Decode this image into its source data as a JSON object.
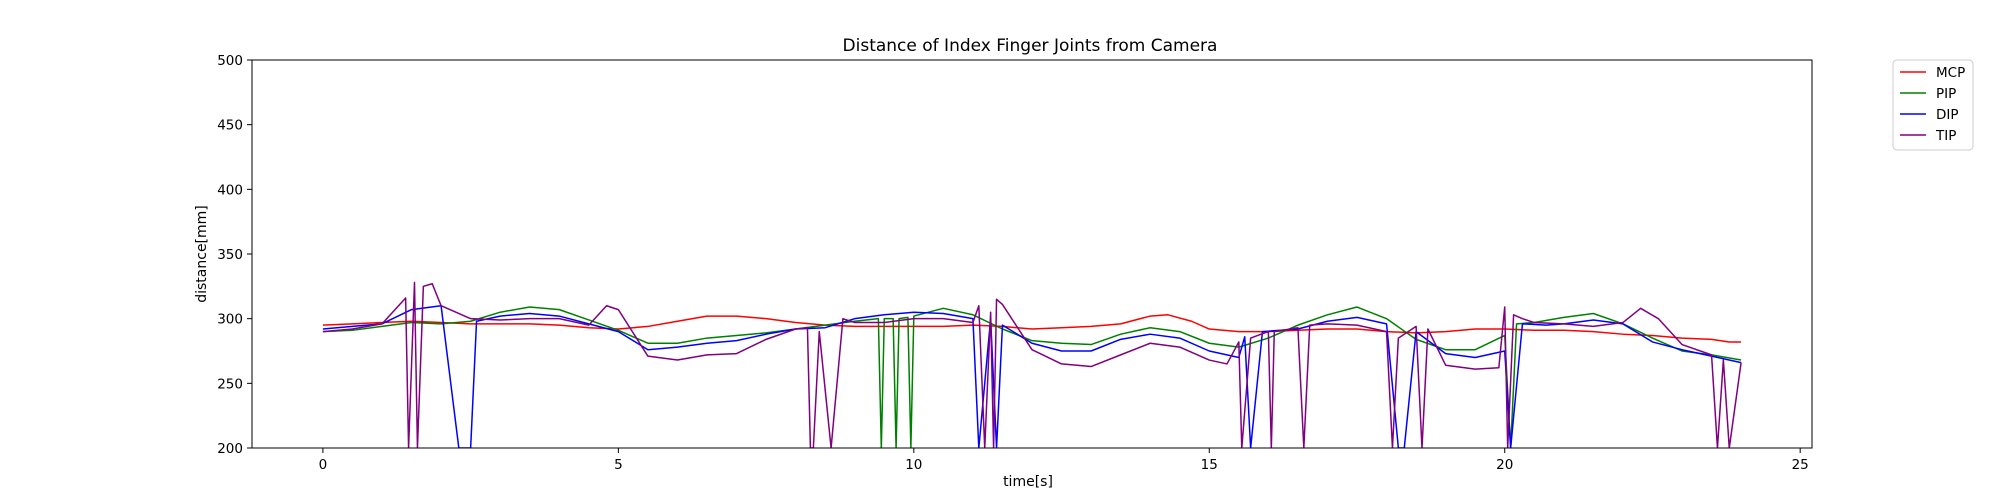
{
  "chart_data": {
    "type": "line",
    "title": "Distance of Index Finger Joints from Camera",
    "xlabel": "time[s]",
    "ylabel": "distance[mm]",
    "xlim": [
      -1.2,
      25.2
    ],
    "ylim": [
      200,
      500
    ],
    "xticks": [
      0,
      5,
      10,
      15,
      20,
      25
    ],
    "yticks": [
      200,
      250,
      300,
      350,
      400,
      450,
      500
    ],
    "grid": false,
    "legend_position": "outside-top-right",
    "series": [
      {
        "name": "MCP",
        "color": "#ff0000",
        "points": [
          [
            0,
            295
          ],
          [
            0.5,
            296
          ],
          [
            1,
            297
          ],
          [
            1.5,
            298
          ],
          [
            2,
            297
          ],
          [
            2.5,
            296
          ],
          [
            3,
            296
          ],
          [
            3.5,
            296
          ],
          [
            4,
            295
          ],
          [
            4.5,
            293
          ],
          [
            5,
            292
          ],
          [
            5.5,
            294
          ],
          [
            6,
            298
          ],
          [
            6.5,
            302
          ],
          [
            7,
            302
          ],
          [
            7.5,
            300
          ],
          [
            8,
            297
          ],
          [
            8.5,
            295
          ],
          [
            9,
            294
          ],
          [
            9.5,
            294
          ],
          [
            10,
            294
          ],
          [
            10.5,
            294
          ],
          [
            11,
            295
          ],
          [
            11.5,
            294
          ],
          [
            12,
            292
          ],
          [
            12.5,
            293
          ],
          [
            13,
            294
          ],
          [
            13.5,
            296
          ],
          [
            14,
            302
          ],
          [
            14.3,
            303
          ],
          [
            14.7,
            298
          ],
          [
            15,
            292
          ],
          [
            15.5,
            290
          ],
          [
            16,
            290
          ],
          [
            16.5,
            291
          ],
          [
            17,
            292
          ],
          [
            17.5,
            292
          ],
          [
            18,
            290
          ],
          [
            18.5,
            289
          ],
          [
            19,
            290
          ],
          [
            19.5,
            292
          ],
          [
            20,
            292
          ],
          [
            20.5,
            291
          ],
          [
            21,
            291
          ],
          [
            21.5,
            290
          ],
          [
            22,
            288
          ],
          [
            22.5,
            287
          ],
          [
            23,
            285
          ],
          [
            23.5,
            284
          ],
          [
            23.8,
            282
          ],
          [
            24,
            282
          ]
        ]
      },
      {
        "name": "PIP",
        "color": "#008000",
        "points": [
          [
            0,
            290
          ],
          [
            0.5,
            291
          ],
          [
            1,
            294
          ],
          [
            1.5,
            297
          ],
          [
            2,
            296
          ],
          [
            2.5,
            298
          ],
          [
            3,
            305
          ],
          [
            3.5,
            309
          ],
          [
            4,
            307
          ],
          [
            4.5,
            299
          ],
          [
            5,
            291
          ],
          [
            5.5,
            281
          ],
          [
            6,
            281
          ],
          [
            6.5,
            285
          ],
          [
            7,
            287
          ],
          [
            7.5,
            289
          ],
          [
            8,
            292
          ],
          [
            8.5,
            295
          ],
          [
            9,
            298
          ],
          [
            9.4,
            300
          ],
          [
            9.45,
            200
          ],
          [
            9.5,
            300
          ],
          [
            9.65,
            300
          ],
          [
            9.7,
            200
          ],
          [
            9.75,
            300
          ],
          [
            9.9,
            301
          ],
          [
            9.95,
            200
          ],
          [
            10,
            302
          ],
          [
            10.5,
            308
          ],
          [
            11,
            303
          ],
          [
            11.5,
            292
          ],
          [
            12,
            283
          ],
          [
            12.5,
            281
          ],
          [
            13,
            280
          ],
          [
            13.5,
            288
          ],
          [
            14,
            293
          ],
          [
            14.5,
            290
          ],
          [
            15,
            281
          ],
          [
            15.5,
            278
          ],
          [
            16,
            285
          ],
          [
            16.5,
            295
          ],
          [
            17,
            303
          ],
          [
            17.5,
            309
          ],
          [
            18,
            300
          ],
          [
            18.5,
            284
          ],
          [
            19,
            276
          ],
          [
            19.5,
            276
          ],
          [
            20,
            287
          ],
          [
            20.1,
            200
          ],
          [
            20.2,
            296
          ],
          [
            20.5,
            297
          ],
          [
            21,
            301
          ],
          [
            21.5,
            304
          ],
          [
            22,
            296
          ],
          [
            22.5,
            285
          ],
          [
            23,
            275
          ],
          [
            23.5,
            272
          ],
          [
            24,
            268
          ]
        ]
      },
      {
        "name": "DIP",
        "color": "#0000ff",
        "points": [
          [
            0,
            292
          ],
          [
            0.5,
            294
          ],
          [
            1,
            296
          ],
          [
            1.5,
            307
          ],
          [
            2,
            310
          ],
          [
            2.3,
            200
          ],
          [
            2.5,
            200
          ],
          [
            2.6,
            298
          ],
          [
            3,
            302
          ],
          [
            3.5,
            304
          ],
          [
            4,
            302
          ],
          [
            4.5,
            296
          ],
          [
            5,
            290
          ],
          [
            5.5,
            276
          ],
          [
            6,
            278
          ],
          [
            6.5,
            281
          ],
          [
            7,
            283
          ],
          [
            7.5,
            288
          ],
          [
            8,
            292
          ],
          [
            8.5,
            293
          ],
          [
            9,
            300
          ],
          [
            9.5,
            303
          ],
          [
            10,
            305
          ],
          [
            10.5,
            304
          ],
          [
            11,
            300
          ],
          [
            11.1,
            200
          ],
          [
            11.3,
            300
          ],
          [
            11.4,
            200
          ],
          [
            11.5,
            295
          ],
          [
            12,
            281
          ],
          [
            12.5,
            275
          ],
          [
            13,
            275
          ],
          [
            13.5,
            284
          ],
          [
            14,
            288
          ],
          [
            14.5,
            285
          ],
          [
            15,
            275
          ],
          [
            15.5,
            270
          ],
          [
            15.6,
            286
          ],
          [
            15.7,
            200
          ],
          [
            15.9,
            290
          ],
          [
            16.5,
            292
          ],
          [
            17,
            298
          ],
          [
            17.5,
            301
          ],
          [
            18,
            296
          ],
          [
            18.2,
            200
          ],
          [
            18.3,
            200
          ],
          [
            18.5,
            290
          ],
          [
            19,
            273
          ],
          [
            19.5,
            270
          ],
          [
            20,
            275
          ],
          [
            20.1,
            200
          ],
          [
            20.3,
            296
          ],
          [
            20.7,
            295
          ],
          [
            21,
            296
          ],
          [
            21.5,
            299
          ],
          [
            22,
            296
          ],
          [
            22.5,
            282
          ],
          [
            23,
            276
          ],
          [
            23.5,
            271
          ],
          [
            24,
            266
          ]
        ]
      },
      {
        "name": "TIP",
        "color": "#800080",
        "points": [
          [
            0,
            290
          ],
          [
            0.5,
            292
          ],
          [
            1,
            296
          ],
          [
            1.4,
            316
          ],
          [
            1.45,
            200
          ],
          [
            1.55,
            328
          ],
          [
            1.6,
            200
          ],
          [
            1.7,
            325
          ],
          [
            1.85,
            327
          ],
          [
            2,
            310
          ],
          [
            2.5,
            300
          ],
          [
            3,
            299
          ],
          [
            3.5,
            300
          ],
          [
            4,
            300
          ],
          [
            4.5,
            295
          ],
          [
            4.8,
            310
          ],
          [
            5,
            307
          ],
          [
            5.5,
            271
          ],
          [
            6,
            268
          ],
          [
            6.5,
            272
          ],
          [
            7,
            273
          ],
          [
            7.5,
            284
          ],
          [
            8,
            292
          ],
          [
            8.2,
            293
          ],
          [
            8.25,
            200
          ],
          [
            8.3,
            200
          ],
          [
            8.4,
            290
          ],
          [
            8.6,
            200
          ],
          [
            8.8,
            300
          ],
          [
            9,
            297
          ],
          [
            9.5,
            297
          ],
          [
            10,
            300
          ],
          [
            10.5,
            300
          ],
          [
            11,
            297
          ],
          [
            11.1,
            310
          ],
          [
            11.2,
            200
          ],
          [
            11.3,
            305
          ],
          [
            11.35,
            200
          ],
          [
            11.4,
            315
          ],
          [
            11.5,
            311
          ],
          [
            12,
            276
          ],
          [
            12.5,
            265
          ],
          [
            13,
            263
          ],
          [
            13.5,
            272
          ],
          [
            14,
            281
          ],
          [
            14.5,
            278
          ],
          [
            15,
            268
          ],
          [
            15.3,
            265
          ],
          [
            15.5,
            282
          ],
          [
            15.55,
            200
          ],
          [
            15.7,
            285
          ],
          [
            16,
            290
          ],
          [
            16.05,
            200
          ],
          [
            16.1,
            290
          ],
          [
            16.5,
            293
          ],
          [
            16.6,
            200
          ],
          [
            16.7,
            295
          ],
          [
            17,
            296
          ],
          [
            17.5,
            295
          ],
          [
            18,
            290
          ],
          [
            18.1,
            200
          ],
          [
            18.2,
            285
          ],
          [
            18.5,
            294
          ],
          [
            18.6,
            200
          ],
          [
            18.7,
            292
          ],
          [
            19,
            264
          ],
          [
            19.5,
            261
          ],
          [
            19.9,
            262
          ],
          [
            20,
            309
          ],
          [
            20.05,
            200
          ],
          [
            20.15,
            303
          ],
          [
            20.3,
            300
          ],
          [
            20.5,
            297
          ],
          [
            21,
            296
          ],
          [
            21.5,
            294
          ],
          [
            22,
            297
          ],
          [
            22.3,
            308
          ],
          [
            22.6,
            300
          ],
          [
            23,
            280
          ],
          [
            23.5,
            272
          ],
          [
            23.6,
            200
          ],
          [
            23.7,
            268
          ],
          [
            23.8,
            200
          ],
          [
            24,
            266
          ]
        ]
      }
    ]
  }
}
